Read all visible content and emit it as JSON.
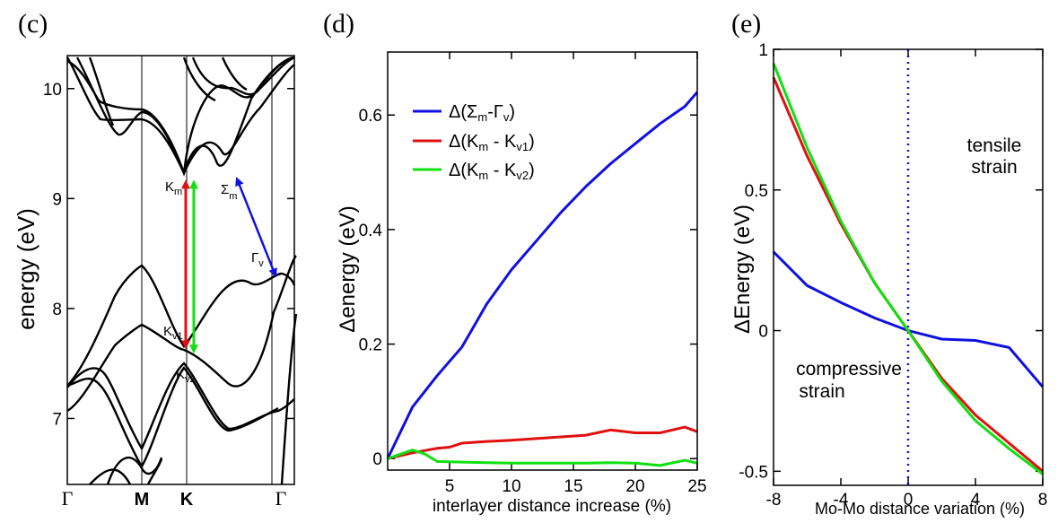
{
  "colors": {
    "blue": "#1010e0",
    "red": "#e01010",
    "green": "#10e010",
    "black": "#000000"
  },
  "chart_data": [
    {
      "type": "line",
      "panel_label": "(c)",
      "ylabel": "energy (eV)",
      "xlabel": "",
      "ylim": [
        6.4,
        10.3
      ],
      "yticks": [
        "7",
        "8",
        "9",
        "10"
      ],
      "kpoints": [
        "Γ",
        "M",
        "K",
        "Γ"
      ],
      "band_markers": {
        "Km": {
          "main": "K",
          "sub": "m"
        },
        "Kv1": {
          "main": "K",
          "sub": "v1"
        },
        "Kv2": {
          "main": "K",
          "sub": "v2"
        },
        "Sigma_m": {
          "main": "Σ",
          "sub": "m"
        },
        "Gamma_v": {
          "main": "Γ",
          "sub": "v"
        }
      },
      "transitions": [
        {
          "from": "Km",
          "to": "Kv1",
          "from_energy": 9.18,
          "to_energy": 7.62,
          "color": "red"
        },
        {
          "from": "Km",
          "to": "Kv2",
          "from_energy": 9.18,
          "to_energy": 7.58,
          "color": "green"
        },
        {
          "from": "Sigma_m",
          "to": "Gamma_v",
          "from_energy": 9.18,
          "to_energy": 8.3,
          "color": "blue"
        }
      ]
    },
    {
      "type": "line",
      "panel_label": "(d)",
      "xlabel": "interlayer distance increase (%)",
      "ylabel": "Δenergy (eV)",
      "xlim": [
        0,
        25
      ],
      "ylim": [
        -0.02,
        0.71
      ],
      "xticks": [
        "5",
        "10",
        "15",
        "20",
        "25"
      ],
      "yticks": [
        "0",
        "0.2",
        "0.4",
        "0.6"
      ],
      "legend_position": "top-left",
      "series": [
        {
          "name": "Δ(Σm-Γv)",
          "legend": {
            "pre": "Δ(Σ",
            "s1": "m",
            "mid": "-Γ",
            "s2": "v",
            "post": ")"
          },
          "color": "blue",
          "x": [
            0,
            2,
            4,
            6,
            8,
            10,
            12,
            14,
            16,
            18,
            20,
            22,
            24,
            25
          ],
          "y": [
            0,
            0.09,
            0.145,
            0.195,
            0.27,
            0.33,
            0.38,
            0.43,
            0.475,
            0.515,
            0.55,
            0.585,
            0.615,
            0.64
          ]
        },
        {
          "name": "Δ(Km - Kv1)",
          "legend": {
            "pre": "Δ(K",
            "s1": "m",
            "mid": " - K",
            "s2": "v1",
            "post": ")"
          },
          "color": "red",
          "x": [
            0,
            2,
            4,
            5,
            6,
            8,
            10,
            12,
            14,
            16,
            18,
            20,
            22,
            24,
            25
          ],
          "y": [
            0,
            0.01,
            0.018,
            0.02,
            0.027,
            0.03,
            0.032,
            0.035,
            0.038,
            0.041,
            0.05,
            0.045,
            0.045,
            0.055,
            0.047
          ]
        },
        {
          "name": "Δ(Km - Kv2)",
          "legend": {
            "pre": "Δ(K",
            "s1": "m",
            "mid": " - K",
            "s2": "v2",
            "post": ")"
          },
          "color": "green",
          "x": [
            0,
            2,
            3,
            4,
            6,
            8,
            10,
            12,
            14,
            16,
            18,
            20,
            22,
            24,
            25
          ],
          "y": [
            0,
            0.015,
            0.008,
            -0.005,
            -0.006,
            -0.007,
            -0.008,
            -0.008,
            -0.008,
            -0.008,
            -0.007,
            -0.008,
            -0.012,
            -0.003,
            -0.008
          ]
        }
      ]
    },
    {
      "type": "line",
      "panel_label": "(e)",
      "xlabel": "Mo-Mo distance variation (%)",
      "ylabel": "ΔEnergy (eV)",
      "xlim": [
        -8,
        8
      ],
      "ylim": [
        -0.55,
        1.0
      ],
      "xticks": [
        "-8",
        "-4",
        "0",
        "4",
        "8"
      ],
      "yticks": [
        "-0.5",
        "0",
        "0.5",
        "1"
      ],
      "annotations": [
        {
          "lines": [
            "tensile",
            "strain"
          ]
        },
        {
          "lines": [
            "compressive",
            "strain"
          ]
        }
      ],
      "reference_line_x": 0,
      "series": [
        {
          "name": "Δ(Σm-Γv)",
          "color": "blue",
          "x": [
            -8,
            -6,
            -4,
            -2,
            0,
            2,
            4,
            6,
            8
          ],
          "y": [
            0.28,
            0.16,
            0.1,
            0.045,
            0,
            -0.03,
            -0.035,
            -0.06,
            -0.2
          ]
        },
        {
          "name": "Δ(Km - Kv1)",
          "color": "red",
          "x": [
            -8,
            -6,
            -4,
            -2,
            0,
            2,
            4,
            6,
            8
          ],
          "y": [
            0.9,
            0.62,
            0.38,
            0.17,
            0,
            -0.17,
            -0.3,
            -0.4,
            -0.5
          ]
        },
        {
          "name": "Δ(Km - Kv2)",
          "color": "green",
          "x": [
            -8,
            -6,
            -4,
            -2,
            0,
            2,
            4,
            6,
            8
          ],
          "y": [
            0.95,
            0.65,
            0.39,
            0.17,
            0,
            -0.18,
            -0.32,
            -0.42,
            -0.51
          ]
        }
      ]
    }
  ]
}
